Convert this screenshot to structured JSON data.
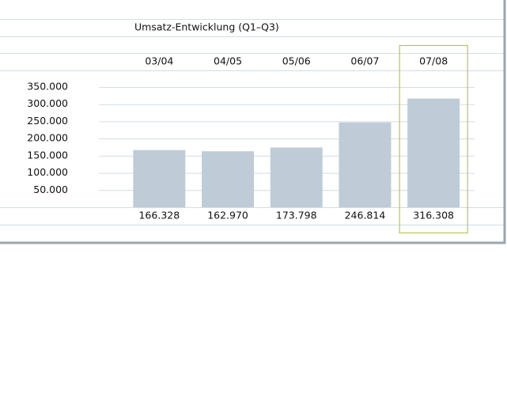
{
  "chart_data": {
    "type": "bar",
    "title": "Umsatz-Entwicklung (Q1–Q3)",
    "categories": [
      "03/04",
      "04/05",
      "05/06",
      "06/07",
      "07/08"
    ],
    "values": [
      166328,
      162970,
      173798,
      246814,
      316308
    ],
    "value_labels": [
      "166.328",
      "162.970",
      "173.798",
      "246.814",
      "316.308"
    ],
    "color": "#bfccd8",
    "ylim": [
      0,
      350000
    ],
    "yticks": [
      {
        "value": 50000,
        "label": "50.000"
      },
      {
        "value": 100000,
        "label": "100.000"
      },
      {
        "value": 150000,
        "label": "150.000"
      },
      {
        "value": 200000,
        "label": "200.000"
      },
      {
        "value": 250000,
        "label": "250.000"
      },
      {
        "value": 300000,
        "label": "300.000"
      },
      {
        "value": 350000,
        "label": "350.000"
      }
    ],
    "grid": true,
    "highlight": "07/08",
    "highlight_color": "#b9c650"
  }
}
